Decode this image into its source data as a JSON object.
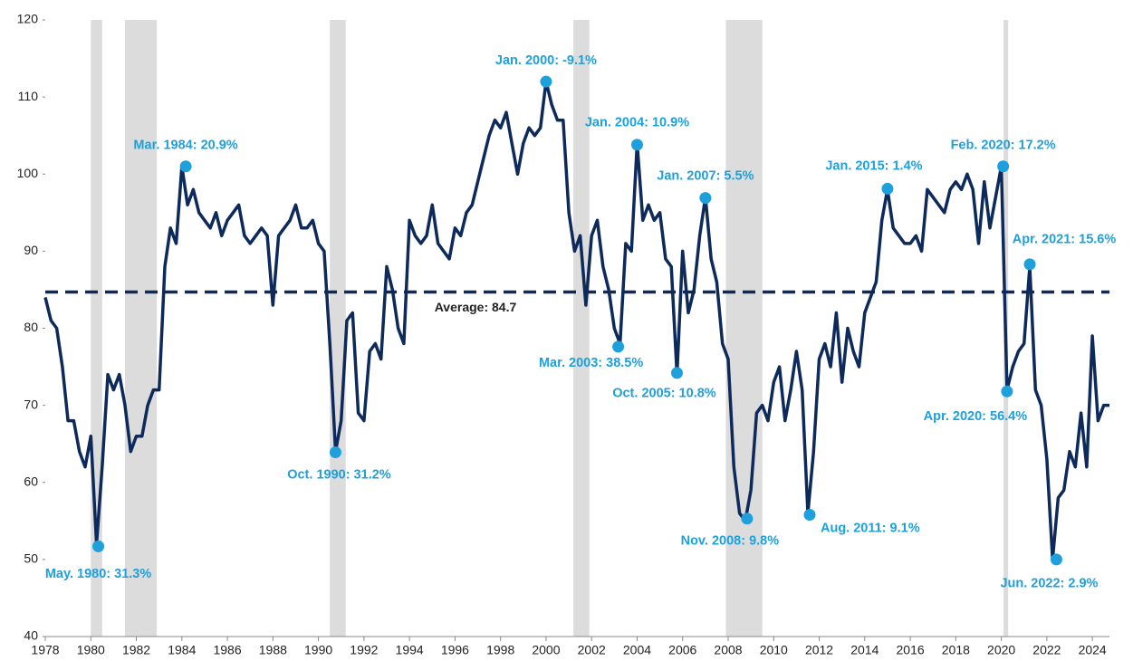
{
  "chart_data": {
    "type": "line",
    "color": "#0d2a5a",
    "xlim": [
      1978,
      2024.75
    ],
    "ylim": [
      40,
      120
    ],
    "yticks": [
      40,
      50,
      60,
      70,
      80,
      90,
      100,
      110,
      120
    ],
    "xticks": [
      1978,
      1980,
      1982,
      1984,
      1986,
      1988,
      1990,
      1992,
      1994,
      1996,
      1998,
      2000,
      2002,
      2004,
      2006,
      2008,
      2010,
      2012,
      2014,
      2016,
      2018,
      2020,
      2022,
      2024
    ],
    "grid": false,
    "average": 84.7,
    "average_label": "Average: 84.7",
    "shaded_ranges": [
      [
        1980.0,
        1980.5
      ],
      [
        1981.5,
        1982.9
      ],
      [
        1990.5,
        1991.2
      ],
      [
        2001.2,
        2001.9
      ],
      [
        2007.9,
        2009.5
      ],
      [
        2020.1,
        2020.3
      ]
    ],
    "shade_color": "#dcdcdc",
    "point_color": "#1ea0dc",
    "x": [
      1978,
      1978.25,
      1978.5,
      1978.75,
      1979,
      1979.25,
      1979.5,
      1979.75,
      1980,
      1980.25,
      1980.5,
      1980.75,
      1981,
      1981.25,
      1981.5,
      1981.75,
      1982,
      1982.25,
      1982.5,
      1982.75,
      1983,
      1983.25,
      1983.5,
      1983.75,
      1984,
      1984.25,
      1984.5,
      1984.75,
      1985,
      1985.25,
      1985.5,
      1985.75,
      1986,
      1986.25,
      1986.5,
      1986.75,
      1987,
      1987.25,
      1987.5,
      1987.75,
      1988,
      1988.25,
      1988.5,
      1988.75,
      1989,
      1989.25,
      1989.5,
      1989.75,
      1990,
      1990.25,
      1990.5,
      1990.75,
      1991,
      1991.25,
      1991.5,
      1991.75,
      1992,
      1992.25,
      1992.5,
      1992.75,
      1993,
      1993.25,
      1993.5,
      1993.75,
      1994,
      1994.25,
      1994.5,
      1994.75,
      1995,
      1995.25,
      1995.5,
      1995.75,
      1996,
      1996.25,
      1996.5,
      1996.75,
      1997,
      1997.25,
      1997.5,
      1997.75,
      1998,
      1998.25,
      1998.5,
      1998.75,
      1999,
      1999.25,
      1999.5,
      1999.75,
      2000,
      2000.25,
      2000.5,
      2000.75,
      2001,
      2001.25,
      2001.5,
      2001.75,
      2002,
      2002.25,
      2002.5,
      2002.75,
      2003,
      2003.25,
      2003.5,
      2003.75,
      2004,
      2004.25,
      2004.5,
      2004.75,
      2005,
      2005.25,
      2005.5,
      2005.75,
      2006,
      2006.25,
      2006.5,
      2006.75,
      2007,
      2007.25,
      2007.5,
      2007.75,
      2008,
      2008.25,
      2008.5,
      2008.75,
      2009,
      2009.25,
      2009.5,
      2009.75,
      2010,
      2010.25,
      2010.5,
      2010.75,
      2011,
      2011.25,
      2011.5,
      2011.75,
      2012,
      2012.25,
      2012.5,
      2012.75,
      2013,
      2013.25,
      2013.5,
      2013.75,
      2014,
      2014.25,
      2014.5,
      2014.75,
      2015,
      2015.25,
      2015.5,
      2015.75,
      2016,
      2016.25,
      2016.5,
      2016.75,
      2017,
      2017.25,
      2017.5,
      2017.75,
      2018,
      2018.25,
      2018.5,
      2018.75,
      2019,
      2019.25,
      2019.5,
      2019.75,
      2020,
      2020.25,
      2020.5,
      2020.75,
      2021,
      2021.25,
      2021.5,
      2021.75,
      2022,
      2022.25,
      2022.5,
      2022.75,
      2023,
      2023.25,
      2023.5,
      2023.75,
      2024,
      2024.25,
      2024.5,
      2024.75
    ],
    "values": [
      84,
      81,
      80,
      75,
      68,
      68,
      64,
      62,
      66,
      52,
      62,
      74,
      72,
      74,
      70,
      64,
      66,
      66,
      70,
      72,
      72,
      88,
      93,
      91,
      101,
      96,
      98,
      95,
      94,
      93,
      95,
      92,
      94,
      95,
      96,
      92,
      91,
      92,
      93,
      92,
      83,
      92,
      93,
      94,
      96,
      93,
      93,
      94,
      91,
      90,
      78,
      64,
      68,
      81,
      82,
      69,
      68,
      77,
      78,
      76,
      88,
      85,
      80,
      78,
      94,
      92,
      91,
      92,
      96,
      91,
      90,
      89,
      93,
      92,
      95,
      96,
      99,
      102,
      105,
      107,
      106,
      108,
      104,
      100,
      104,
      106,
      105,
      106,
      112,
      109,
      107,
      107,
      95,
      90,
      92,
      83,
      92,
      94,
      88,
      85,
      80,
      78,
      91,
      90,
      104,
      94,
      96,
      94,
      95,
      89,
      88,
      74,
      90,
      82,
      85,
      92,
      97,
      89,
      86,
      78,
      76,
      62,
      56,
      55,
      59,
      69,
      70,
      68,
      73,
      75,
      68,
      72,
      77,
      72,
      56,
      64,
      76,
      78,
      75,
      82,
      73,
      80,
      77,
      75,
      82,
      84,
      86,
      94,
      98,
      93,
      92,
      91,
      91,
      92,
      90,
      98,
      97,
      96,
      95,
      98,
      99,
      98,
      100,
      98,
      91,
      99,
      93,
      97,
      101,
      72,
      75,
      77,
      78,
      88,
      72,
      70,
      63,
      50,
      58,
      59,
      64,
      62,
      69,
      62,
      79,
      68,
      70,
      70
    ],
    "annotations": [
      {
        "label": "May. 1980: 31.3%",
        "x": 1980.33,
        "y": 51.7
      },
      {
        "label": "Mar. 1984: 20.9%",
        "x": 1984.17,
        "y": 101
      },
      {
        "label": "Oct. 1990: 31.2%",
        "x": 1990.75,
        "y": 63.9
      },
      {
        "label": "Jan. 2000: -9.1%",
        "x": 2000.0,
        "y": 112
      },
      {
        "label": "Mar. 2003: 38.5%",
        "x": 2003.17,
        "y": 77.6
      },
      {
        "label": "Jan. 2004: 10.9%",
        "x": 2004.0,
        "y": 103.8
      },
      {
        "label": "Oct. 2005: 10.8%",
        "x": 2005.75,
        "y": 74.2
      },
      {
        "label": "Jan. 2007: 5.5%",
        "x": 2007.0,
        "y": 96.9
      },
      {
        "label": "Nov. 2008: 9.8%",
        "x": 2008.83,
        "y": 55.3
      },
      {
        "label": "Aug. 2011: 9.1%",
        "x": 2011.58,
        "y": 55.8
      },
      {
        "label": "Jan. 2015: 1.4%",
        "x": 2015.0,
        "y": 98.1
      },
      {
        "label": "Feb. 2020: 17.2%",
        "x": 2020.08,
        "y": 101
      },
      {
        "label": "Apr. 2020: 56.4%",
        "x": 2020.25,
        "y": 71.8
      },
      {
        "label": "Apr. 2021: 15.6%",
        "x": 2021.25,
        "y": 88.3
      },
      {
        "label": "Jun. 2022: 2.9%",
        "x": 2022.42,
        "y": 50
      }
    ]
  }
}
